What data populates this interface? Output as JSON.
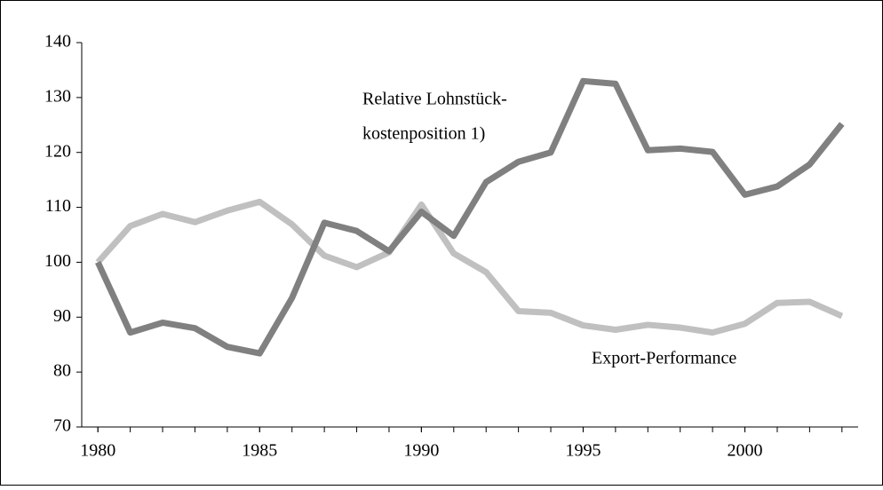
{
  "chart_data": {
    "type": "line",
    "x": [
      1980,
      1981,
      1982,
      1983,
      1984,
      1985,
      1986,
      1987,
      1988,
      1989,
      1990,
      1991,
      1992,
      1993,
      1994,
      1995,
      1996,
      1997,
      1998,
      1999,
      2000,
      2001,
      2002,
      2003
    ],
    "series": [
      {
        "color": "#808080",
        "values": [
          100,
          87.2,
          89,
          88,
          84.6,
          83.4,
          93.5,
          107.2,
          105.7,
          102,
          109.2,
          104.8,
          114.6,
          118.3,
          120,
          133,
          132.5,
          120.4,
          120.7,
          120.1,
          112.3,
          113.8,
          117.8,
          125.2
        ]
      },
      {
        "color": "#c0c0c0",
        "values": [
          100,
          106.6,
          108.8,
          107.3,
          109.4,
          111,
          106.9,
          101.2,
          99.1,
          101.8,
          110.5,
          101.6,
          98.2,
          91.1,
          90.8,
          88.5,
          87.7,
          88.6,
          88.1,
          87.2,
          88.8,
          92.6,
          92.8,
          90.2
        ]
      }
    ],
    "annotations": [
      {
        "lines": [
          "Relative Lohnstück-",
          "kostenposition 1)"
        ]
      },
      {
        "lines": [
          "Export-Performance"
        ]
      }
    ],
    "xlim": [
      1979.5,
      2003.5
    ],
    "xticks": [
      1980,
      1985,
      1990,
      1995,
      2000
    ],
    "ylim": [
      70,
      140
    ],
    "yticks": [
      70,
      80,
      90,
      100,
      110,
      120,
      130,
      140
    ],
    "grid": false
  }
}
